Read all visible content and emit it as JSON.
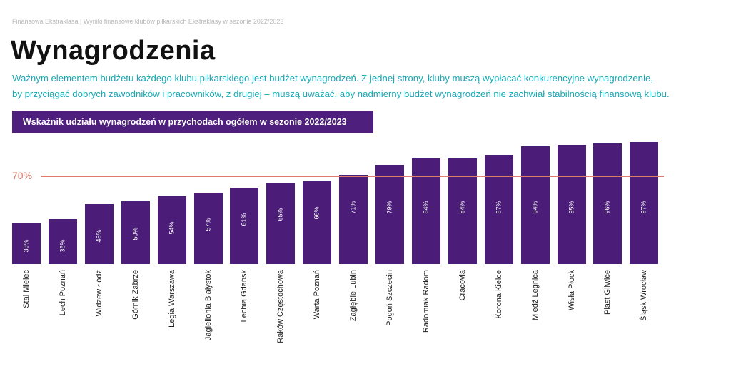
{
  "header": {
    "breadcrumb": "Finansowa Ekstraklasa | Wyniki finansowe klubów piłkarskich Ekstraklasy w sezonie 2022/2023",
    "title": "Wynagrodzenia",
    "intro_lines": [
      "Ważnym elementem budżetu każdego klubu piłkarskiego jest budżet wynagrodzeń. Z jednej strony, kluby muszą wypłacać konkurencyjne wynagrodzenie,",
      "by przyciągać dobrych zawodników i pracowników, z drugiej – muszą uważać, aby nadmierny budżet wynagrodzeń nie zachwiał stabilnością finansową klubu."
    ]
  },
  "colors": {
    "bar": "#4b1d78",
    "reference": "#e07a6a",
    "intro": "#17a8b4"
  },
  "chart_data": {
    "type": "bar",
    "title": "Wskaźnik udziału wynagrodzeń w przychodach ogółem w sezonie 2022/2023",
    "categories": [
      "Stal Mielec",
      "Lech Poznań",
      "Widzew Łódź",
      "Górnik Zabrze",
      "Legia Warszawa",
      "Jagiellonia Białystok",
      "Lechia Gdańsk",
      "Raków Częstochowa",
      "Warta Poznań",
      "Zagłębie Lubin",
      "Pogoń Szczecin",
      "Radomiak Radom",
      "Cracovia",
      "Korona Kielce",
      "Miedź Legnica",
      "Wisła Płock",
      "Piast Gliwice",
      "Śląsk Wrocław"
    ],
    "values": [
      33,
      36,
      48,
      50,
      54,
      57,
      61,
      65,
      66,
      71,
      79,
      84,
      84,
      87,
      94,
      95,
      96,
      97
    ],
    "value_labels": [
      "33%",
      "36%",
      "48%",
      "50%",
      "54%",
      "57%",
      "61%",
      "65%",
      "66%",
      "71%",
      "79%",
      "84%",
      "84%",
      "87%",
      "94%",
      "95%",
      "96%",
      "97%"
    ],
    "reference_line": {
      "value": 70,
      "label": "70%"
    },
    "ylim": [
      0,
      100
    ],
    "xlabel": "",
    "ylabel": "",
    "grid": false
  }
}
